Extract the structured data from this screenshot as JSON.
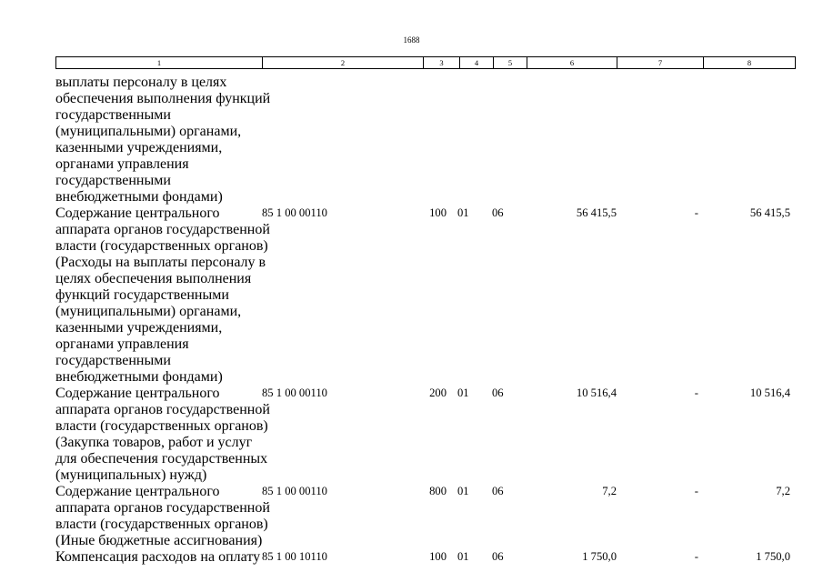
{
  "page_number": "1688",
  "header_columns": [
    "1",
    "2",
    "3",
    "4",
    "5",
    "6",
    "7",
    "8"
  ],
  "rows": [
    {
      "lines": [
        "выплаты персоналу в целях",
        "обеспечения выполнения функций",
        "государственными",
        "(муниципальными) органами,",
        "казенными учреждениями,",
        "органами управления",
        "государственными",
        "внебюджетными фондами)"
      ],
      "code": "",
      "vr": "",
      "rz": "",
      "pr": "",
      "value1": "",
      "value2": "",
      "value3": ""
    },
    {
      "lines": [
        "Содержание центрального",
        "аппарата органов государственной",
        "власти (государственных органов)",
        "(Расходы на выплаты персоналу в",
        "целях обеспечения выполнения",
        "функций государственными",
        "(муниципальными) органами,",
        "казенными учреждениями,",
        "органами управления",
        "государственными",
        "внебюджетными фондами)"
      ],
      "code": "85 1 00 00110",
      "vr": "100",
      "rz": "01",
      "pr": "06",
      "value1": "56 415,5",
      "value2": "-",
      "value3": "56 415,5"
    },
    {
      "lines": [
        "Содержание центрального",
        "аппарата органов государственной",
        "власти (государственных органов)",
        "(Закупка товаров, работ и услуг",
        "для обеспечения государственных",
        "(муниципальных) нужд)"
      ],
      "code": "85 1 00 00110",
      "vr": "200",
      "rz": "01",
      "pr": "06",
      "value1": "10 516,4",
      "value2": "-",
      "value3": "10 516,4"
    },
    {
      "lines": [
        "Содержание центрального",
        "аппарата органов государственной",
        "власти (государственных органов)",
        "(Иные бюджетные ассигнования)"
      ],
      "code": "85 1 00 00110",
      "vr": "800",
      "rz": "01",
      "pr": "06",
      "value1": "7,2",
      "value2": "-",
      "value3": "7,2"
    },
    {
      "lines": [
        "Компенсация расходов на оплату"
      ],
      "code": "85 1 00 10110",
      "vr": "100",
      "rz": "01",
      "pr": "06",
      "value1": "1 750,0",
      "value2": "-",
      "value3": "1 750,0"
    }
  ]
}
